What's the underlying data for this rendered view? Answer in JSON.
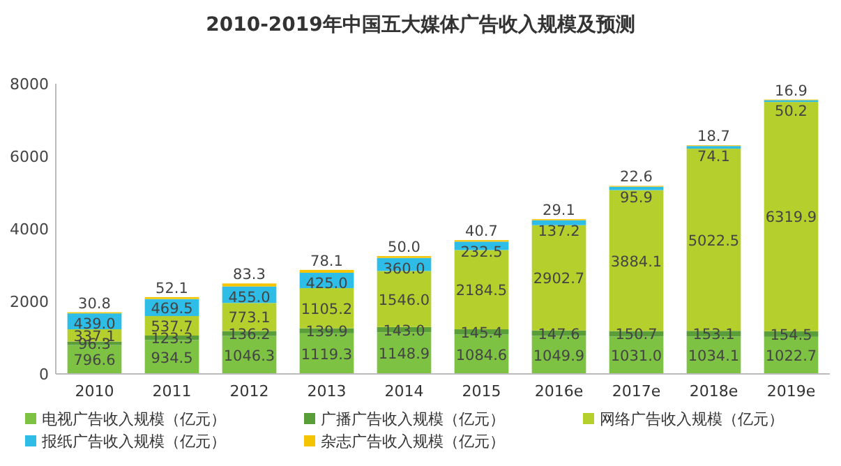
{
  "chart_data": {
    "type": "bar",
    "title": "2010-2019年中国五大媒体广告收入规模及预测",
    "stacked": true,
    "legend": "bottom",
    "grid": false,
    "categories": [
      "2010",
      "2011",
      "2012",
      "2013",
      "2014",
      "2015",
      "2016e",
      "2017e",
      "2018e",
      "2019e"
    ],
    "ylim": [
      0,
      8000
    ],
    "yticks": [
      0,
      2000,
      4000,
      6000,
      8000
    ],
    "series": [
      {
        "name": "电视广告收入规模（亿元）",
        "color": "#7dc242",
        "values": [
          796.6,
          934.5,
          1046.3,
          1119.3,
          1148.9,
          1084.6,
          1049.9,
          1031,
          1034.1,
          1022.7
        ],
        "value_labels": [
          "796.6",
          "934.5",
          "1046.3",
          "1119.3",
          "1148.9",
          "1084.6",
          "1049.9",
          "1031.0",
          "1034.1",
          "1022.7"
        ]
      },
      {
        "name": "广播广告收入规模（亿元）",
        "color": "#5a9e3a",
        "values": [
          96.3,
          123.3,
          136.2,
          139.9,
          143,
          145.4,
          147.6,
          150.7,
          153.1,
          154.5
        ],
        "value_labels": [
          "96.3",
          "123.3",
          "136.2",
          "139.9",
          "143.0",
          "145.4",
          "147.6",
          "150.7",
          "153.1",
          "154.5"
        ]
      },
      {
        "name": "网络广告收入规模（亿元）",
        "color": "#b5cf2c",
        "values": [
          337.1,
          537.7,
          773.1,
          1105.2,
          1546,
          2184.5,
          2902.7,
          3884.1,
          5022.5,
          6319.9
        ],
        "value_labels": [
          "337.1",
          "537.7",
          "773.1",
          "1105.2",
          "1546.0",
          "2184.5",
          "2902.7",
          "3884.1",
          "5022.5",
          "6319.9"
        ]
      },
      {
        "name": "报纸广告收入规模（亿元）",
        "color": "#2ebde6",
        "values": [
          439,
          469.5,
          455,
          425,
          360,
          232.5,
          137.2,
          95.9,
          74.1,
          50.2
        ],
        "value_labels": [
          "439.0",
          "469.5",
          "455.0",
          "425.0",
          "360.0",
          "232.5",
          "137.2",
          "95.9",
          "74.1",
          "50.2"
        ]
      },
      {
        "name": "杂志广告收入规模（亿元）",
        "color": "#f5c400",
        "values": [
          30.8,
          52.1,
          83.3,
          78.1,
          50,
          40.7,
          29.1,
          22.6,
          18.7,
          16.9
        ],
        "value_labels": [
          "30.8",
          "52.1",
          "83.3",
          "78.1",
          "50.0",
          "40.7",
          "29.1",
          "22.6",
          "18.7",
          "16.9"
        ]
      }
    ]
  }
}
